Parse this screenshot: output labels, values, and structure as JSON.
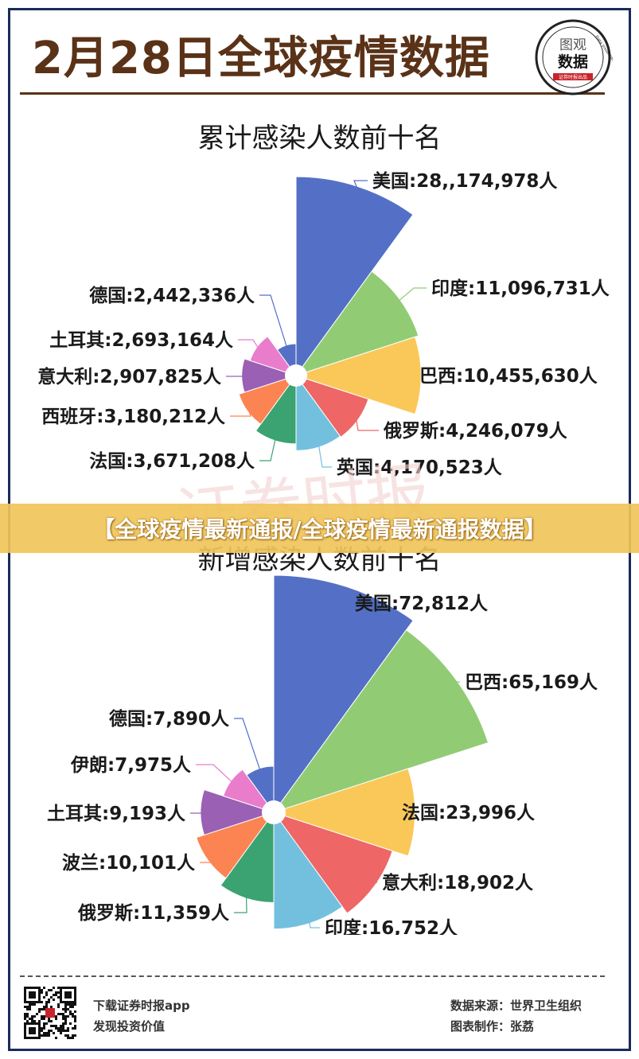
{
  "header": {
    "title": "2月28日全球疫情数据",
    "logo_line1": "图观",
    "logo_line2": "数据",
    "logo_ring": "Data Visualization",
    "logo_band": "证券时报出品"
  },
  "watermark": "证券时报",
  "banner": "【全球疫情最新通报/全球疫情最新通报数据】",
  "chart_data": [
    {
      "type": "pie",
      "variant": "nightingale-rose",
      "title": "累计感染人数前十名",
      "unit": "人",
      "slices": [
        {
          "name": "美国",
          "value": 28174978,
          "text": "美国:28,,174,978人",
          "color": "#5470c6"
        },
        {
          "name": "印度",
          "value": 11096731,
          "text": "印度:11,096,731人",
          "color": "#91cc75"
        },
        {
          "name": "巴西",
          "value": 10455630,
          "text": "巴西:10,455,630人",
          "color": "#fac858"
        },
        {
          "name": "俄罗斯",
          "value": 4246079,
          "text": "俄罗斯:4,246,079人",
          "color": "#ee6666"
        },
        {
          "name": "英国",
          "value": 4170523,
          "text": "英国:4,170,523人",
          "color": "#73c0de"
        },
        {
          "name": "法国",
          "value": 3671208,
          "text": "法国:3,671,208人",
          "color": "#3ba272"
        },
        {
          "name": "西班牙",
          "value": 3180212,
          "text": "西班牙:3,180,212人",
          "color": "#fc8452"
        },
        {
          "name": "意大利",
          "value": 2907825,
          "text": "意大利:2,907,825人",
          "color": "#9a60b4"
        },
        {
          "name": "土耳其",
          "value": 2693164,
          "text": "土耳其:2,693,164人",
          "color": "#ea7ccc"
        },
        {
          "name": "德国",
          "value": 2442336,
          "text": "德国:2,442,336人",
          "color": "#5470c6"
        }
      ]
    },
    {
      "type": "pie",
      "variant": "nightingale-rose",
      "title": "新增感染人数前十名",
      "unit": "人",
      "slices": [
        {
          "name": "美国",
          "value": 72812,
          "text": "美国:72,812人",
          "color": "#5470c6"
        },
        {
          "name": "巴西",
          "value": 65169,
          "text": "巴西:65,169人",
          "color": "#91cc75"
        },
        {
          "name": "法国",
          "value": 23996,
          "text": "法国:23,996人",
          "color": "#fac858"
        },
        {
          "name": "意大利",
          "value": 18902,
          "text": "意大利:18,902人",
          "color": "#ee6666"
        },
        {
          "name": "印度",
          "value": 16752,
          "text": "印度:16,752人",
          "color": "#73c0de"
        },
        {
          "name": "俄罗斯",
          "value": 11359,
          "text": "俄罗斯:11,359人",
          "color": "#3ba272"
        },
        {
          "name": "波兰",
          "value": 10101,
          "text": "波兰:10,101人",
          "color": "#fc8452"
        },
        {
          "name": "土耳其",
          "value": 9193,
          "text": "土耳其:9,193人",
          "color": "#9a60b4"
        },
        {
          "name": "伊朗",
          "value": 7975,
          "text": "伊朗:7,975人",
          "color": "#ea7ccc"
        },
        {
          "name": "德国",
          "value": 7890,
          "text": "德国:7,890人",
          "color": "#5470c6"
        }
      ]
    }
  ],
  "footer": {
    "left_line1": "下载证券时报app",
    "left_line2": "发现投资价值",
    "right_line1": "数据来源：世界卫生组织",
    "right_line2": "图表制作：张荔"
  }
}
